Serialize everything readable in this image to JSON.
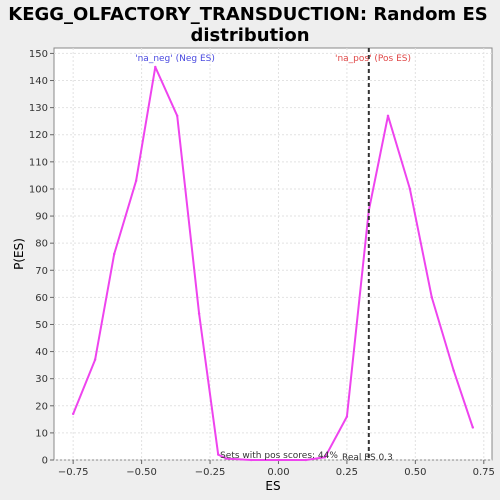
{
  "chart_data": {
    "type": "line",
    "title_line1": "KEGG_OLFACTORY_TRANSDUCTION: Random ES",
    "title_line2": "distribution",
    "xlabel": "ES",
    "ylabel": "P(ES)",
    "xlim": [
      -0.82,
      0.78
    ],
    "ylim": [
      0,
      152
    ],
    "xticks": [
      -0.75,
      -0.5,
      -0.25,
      0.0,
      0.25,
      0.5,
      0.75
    ],
    "xtick_labels": [
      "−0.75",
      "−0.50",
      "−0.25",
      "0.00",
      "0.25",
      "0.50",
      "0.75"
    ],
    "yticks": [
      0,
      10,
      20,
      30,
      40,
      50,
      60,
      70,
      80,
      90,
      100,
      110,
      120,
      130,
      140,
      150
    ],
    "grid": true,
    "series": [
      {
        "color": "#ee44ee",
        "points": [
          [
            -0.75,
            17
          ],
          [
            -0.67,
            37
          ],
          [
            -0.6,
            76
          ],
          [
            -0.52,
            103
          ],
          [
            -0.45,
            145
          ],
          [
            -0.37,
            127
          ],
          [
            -0.29,
            54
          ],
          [
            -0.22,
            2
          ],
          [
            -0.19,
            0.5
          ],
          [
            -0.1,
            0
          ],
          [
            0.0,
            0
          ],
          [
            0.1,
            0
          ],
          [
            0.17,
            1
          ],
          [
            0.25,
            16
          ],
          [
            0.33,
            92
          ],
          [
            0.4,
            127
          ],
          [
            0.48,
            100
          ],
          [
            0.56,
            60
          ],
          [
            0.64,
            33
          ],
          [
            0.71,
            12
          ]
        ]
      }
    ],
    "real_es": 0.33,
    "real_es_label": "Real ES 0.3",
    "neg_label": "'na_neg' (Neg ES)",
    "pos_label": "'na_pos' (Pos ES)",
    "neg_color": "#4a4ae0",
    "pos_color": "#e04848",
    "sets_label": "Sets with pos scores: 44%"
  }
}
